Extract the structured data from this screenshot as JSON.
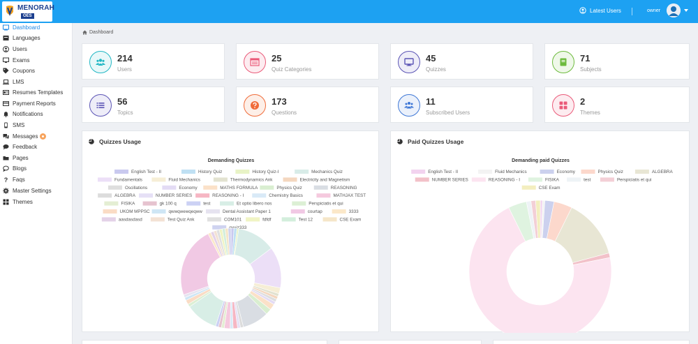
{
  "brand": {
    "name": "MENORAH",
    "sub": "OES"
  },
  "header": {
    "latest_users": "Latest Users",
    "user": "owner"
  },
  "sidebar": {
    "items": [
      {
        "label": "Dashboard",
        "icon": "dashboard-icon",
        "active": true
      },
      {
        "label": "Languages",
        "icon": "language-icon"
      },
      {
        "label": "Users",
        "icon": "user-icon"
      },
      {
        "label": "Exams",
        "icon": "monitor-icon"
      },
      {
        "label": "Coupons",
        "icon": "tag-icon"
      },
      {
        "label": "LMS",
        "icon": "laptop-icon"
      },
      {
        "label": "Resumes Templates",
        "icon": "id-card-icon"
      },
      {
        "label": "Payment Reports",
        "icon": "credit-card-icon"
      },
      {
        "label": "Notifications",
        "icon": "bell-icon"
      },
      {
        "label": "SMS",
        "icon": "mobile-icon"
      },
      {
        "label": "Messages",
        "icon": "comments-icon",
        "badge": true
      },
      {
        "label": "Feedback",
        "icon": "comment-icon"
      },
      {
        "label": "Pages",
        "icon": "folder-icon"
      },
      {
        "label": "Blogs",
        "icon": "bubble-icon"
      },
      {
        "label": "Faqs",
        "icon": "question-icon"
      },
      {
        "label": "Master Settings",
        "icon": "gear-icon"
      },
      {
        "label": "Themes",
        "icon": "grid-icon"
      }
    ]
  },
  "breadcrumb": "Dashboard",
  "stats": [
    {
      "value": "214",
      "label": "Users",
      "color": "#22b7c4",
      "icon": "users-icon"
    },
    {
      "value": "25",
      "label": "Quiz Categories",
      "color": "#ea5a79",
      "icon": "browser-icon"
    },
    {
      "value": "45",
      "label": "Quizzes",
      "color": "#5b54b5",
      "icon": "monitor-icon"
    },
    {
      "value": "71",
      "label": "Subjects",
      "color": "#6dbb3d",
      "icon": "book-icon"
    },
    {
      "value": "56",
      "label": "Topics",
      "color": "#5b54b5",
      "icon": "list-icon"
    },
    {
      "value": "173",
      "label": "Questions",
      "color": "#f06b39",
      "icon": "question-circle-icon"
    },
    {
      "value": "11",
      "label": "Subscribed Users",
      "color": "#3e77d6",
      "icon": "user-group-icon"
    },
    {
      "value": "2",
      "label": "Themes",
      "color": "#ea5a79",
      "icon": "grid-icon"
    }
  ],
  "panels": {
    "quizzes_usage": "Quizzes Usage",
    "paid_quizzes_usage": "Paid Quizzes Usage"
  },
  "chart_data": [
    {
      "type": "pie",
      "title": "Demanding Quizzes",
      "series": [
        {
          "name": "English Test - II",
          "value": 1,
          "color": "#c9c9ef"
        },
        {
          "name": "History Quiz",
          "value": 1,
          "color": "#bfe0f3"
        },
        {
          "name": "History Quiz-I",
          "value": 0.6,
          "color": "#e8f3c6"
        },
        {
          "name": "Mechanics Quiz",
          "value": 13,
          "color": "#d8ece8"
        },
        {
          "name": "Fundamentals",
          "value": 14,
          "color": "#ecdff7"
        },
        {
          "name": "Fluid Mechanics",
          "value": 2,
          "color": "#f6eed6"
        },
        {
          "name": "Thermodynamics Ank",
          "value": 1,
          "color": "#e2e2d0"
        },
        {
          "name": "Electricity and Magnetism",
          "value": 1,
          "color": "#f4d7bf"
        },
        {
          "name": "Oscillations",
          "value": 1,
          "color": "#dedede"
        },
        {
          "name": "Economy",
          "value": 1,
          "color": "#e3dbf4"
        },
        {
          "name": "MATHS FORMULA",
          "value": 2,
          "color": "#fbe1c8"
        },
        {
          "name": "Physics Quiz",
          "value": 2,
          "color": "#d9eed0"
        },
        {
          "name": "REASONING",
          "value": 9,
          "color": "#d9dde3"
        },
        {
          "name": "ALGEBRA",
          "value": 1,
          "color": "#dcdcdc"
        },
        {
          "name": "NUMBER SERIES",
          "value": 1,
          "color": "#e6e0f6"
        },
        {
          "name": "REASONING - I",
          "value": 1.5,
          "color": "#f6b6c3"
        },
        {
          "name": "Chemistry Basics",
          "value": 1,
          "color": "#d9eaf7"
        },
        {
          "name": "MATHJAX TEST",
          "value": 2,
          "color": "#f5c9de"
        },
        {
          "name": "FISIKA",
          "value": 1,
          "color": "#e4eed3"
        },
        {
          "name": "gk 100 q",
          "value": 1,
          "color": "#e6c3cf"
        },
        {
          "name": "test",
          "value": 1,
          "color": "#ccd1f4"
        },
        {
          "name": "Et optio libero nos",
          "value": 11,
          "color": "#d8eee6"
        },
        {
          "name": "Perspiciatis et qui",
          "value": 1,
          "color": "#dcefd4"
        },
        {
          "name": "UKOM MPPSC",
          "value": 1.5,
          "color": "#fadcc5"
        },
        {
          "name": "qwwqwewqeqww",
          "value": 1,
          "color": "#cfe6f5"
        },
        {
          "name": "Dental Assistant Paper 1",
          "value": 1,
          "color": "#e6e3f0"
        },
        {
          "name": "courtap",
          "value": 24,
          "color": "#f1c9e4"
        },
        {
          "name": "3333",
          "value": 1,
          "color": "#fbe8c9"
        },
        {
          "name": "aasdasdasd",
          "value": 1,
          "color": "#e4d2e8"
        },
        {
          "name": "Test Quiz Ank",
          "value": 1,
          "color": "#f3e2d4"
        },
        {
          "name": "COM101",
          "value": 1,
          "color": "#e0e0e0"
        },
        {
          "name": "fdfdf",
          "value": 1,
          "color": "#f0f4c4"
        },
        {
          "name": "Test 12",
          "value": 1,
          "color": "#d3eedc"
        },
        {
          "name": "CSE Exam",
          "value": 1,
          "color": "#f5e6c8"
        },
        {
          "name": "qyuiz333",
          "value": 1,
          "color": "#cfd3f0"
        }
      ]
    },
    {
      "type": "pie",
      "title": "Demanding paid Quizzes",
      "series": [
        {
          "name": "English Test - II",
          "value": 0.5,
          "color": "#f2d3ef"
        },
        {
          "name": "Fluid Mechanics",
          "value": 0.5,
          "color": "#f3f3f3"
        },
        {
          "name": "Economy",
          "value": 2,
          "color": "#ccd1ee"
        },
        {
          "name": "Physics Quiz",
          "value": 4,
          "color": "#fcd8cc"
        },
        {
          "name": "ALGEBRA",
          "value": 13,
          "color": "#e8e6d4"
        },
        {
          "name": "NUMBER SERIES",
          "value": 1,
          "color": "#f2c1c9"
        },
        {
          "name": "REASONING - I",
          "value": 68,
          "color": "#fce4f0"
        },
        {
          "name": "FISIKA",
          "value": 4,
          "color": "#dff3e0"
        },
        {
          "name": "test",
          "value": 1,
          "color": "#eef3f6"
        },
        {
          "name": "Perspiciatis et qui",
          "value": 1,
          "color": "#f3cfd6"
        },
        {
          "name": "CSE Exam",
          "value": 1,
          "color": "#f3eebf"
        }
      ]
    }
  ]
}
